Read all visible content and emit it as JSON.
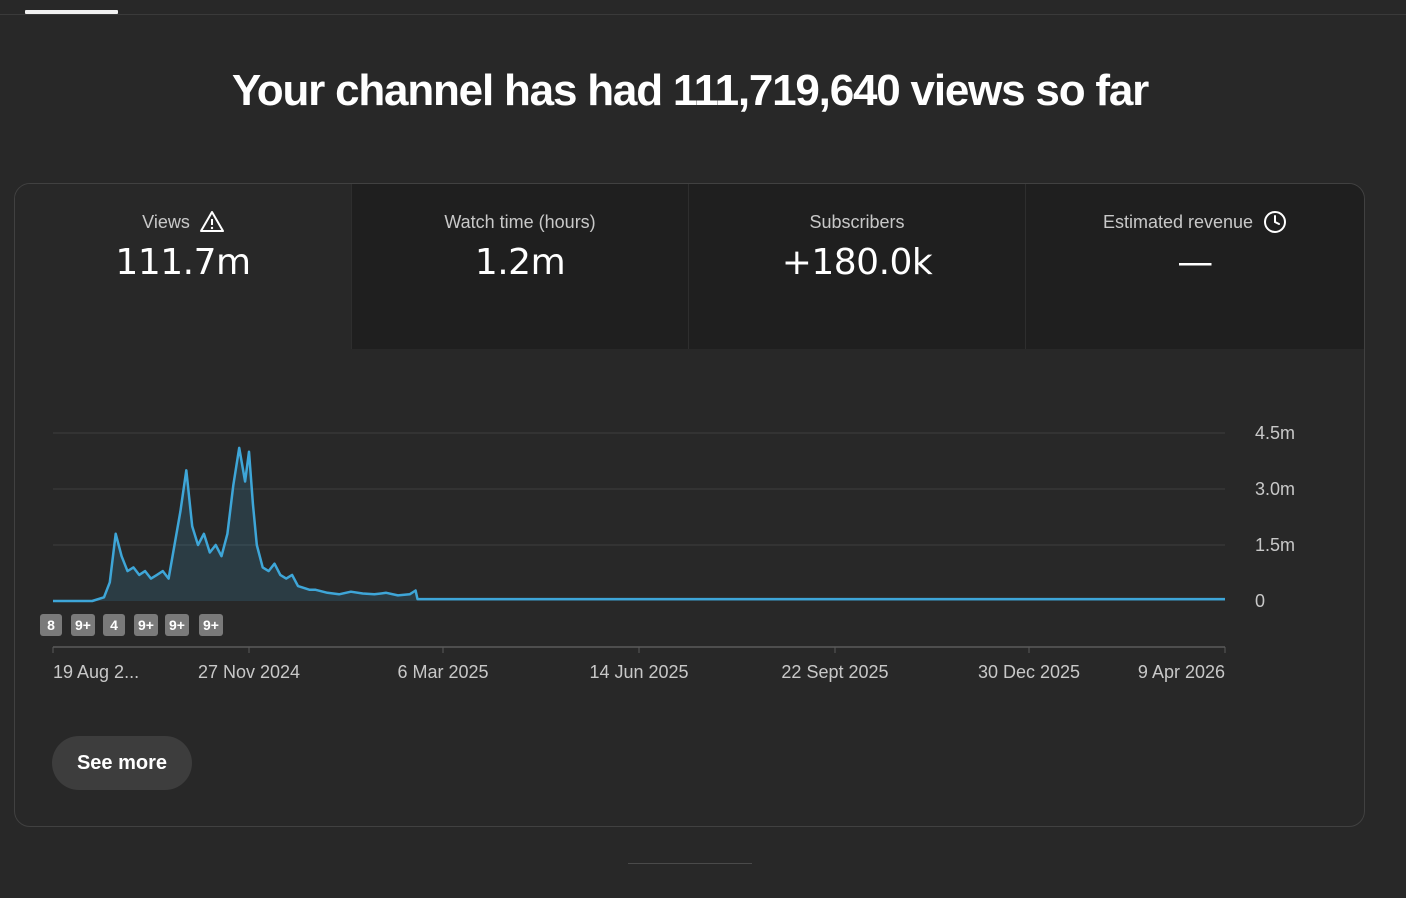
{
  "headline": "Your channel has had 111,719,640 views so far",
  "tabs": [
    {
      "label": "Views",
      "value": "111.7m",
      "icon": "warning-triangle-icon",
      "active": true
    },
    {
      "label": "Watch time (hours)",
      "value": "1.2m",
      "icon": "",
      "active": false
    },
    {
      "label": "Subscribers",
      "value": "+180.0k",
      "icon": "",
      "active": false
    },
    {
      "label": "Estimated revenue",
      "value": "—",
      "icon": "clock-icon",
      "active": false
    }
  ],
  "chart_data": {
    "type": "area",
    "series": [
      {
        "name": "",
        "x": [
          "2024-08-19",
          "2024-09-08",
          "2024-09-14",
          "2024-09-17",
          "2024-09-20",
          "2024-09-23",
          "2024-09-26",
          "2024-09-29",
          "2024-10-02",
          "2024-10-05",
          "2024-10-08",
          "2024-10-11",
          "2024-10-14",
          "2024-10-17",
          "2024-10-20",
          "2024-10-23",
          "2024-10-26",
          "2024-10-29",
          "2024-11-01",
          "2024-11-04",
          "2024-11-07",
          "2024-11-10",
          "2024-11-13",
          "2024-11-16",
          "2024-11-19",
          "2024-11-22",
          "2024-11-25",
          "2024-11-27",
          "2024-11-29",
          "2024-12-01",
          "2024-12-04",
          "2024-12-07",
          "2024-12-10",
          "2024-12-13",
          "2024-12-16",
          "2024-12-19",
          "2024-12-22",
          "2024-12-25",
          "2024-12-28",
          "2024-12-31",
          "2025-01-06",
          "2025-01-12",
          "2025-01-18",
          "2025-01-24",
          "2025-01-30",
          "2025-02-05",
          "2025-02-11",
          "2025-02-17",
          "2025-02-20",
          "2025-02-21",
          "2025-03-06",
          "2025-06-14",
          "2025-09-22",
          "2025-12-30",
          "2026-04-09"
        ],
        "y": [
          0,
          0,
          0.1,
          0.5,
          1.8,
          1.2,
          0.8,
          0.9,
          0.7,
          0.8,
          0.6,
          0.7,
          0.8,
          0.6,
          1.5,
          2.4,
          3.5,
          2.0,
          1.5,
          1.8,
          1.3,
          1.5,
          1.2,
          1.8,
          3.1,
          4.1,
          3.2,
          4.0,
          2.6,
          1.5,
          0.9,
          0.8,
          1.0,
          0.7,
          0.6,
          0.7,
          0.4,
          0.35,
          0.3,
          0.3,
          0.22,
          0.18,
          0.25,
          0.2,
          0.18,
          0.22,
          0.15,
          0.18,
          0.28,
          0.05,
          0.05,
          0.05,
          0.05,
          0.05,
          0.05
        ]
      }
    ],
    "y_ticks": [
      "0",
      "1.5m",
      "3.0m",
      "4.5m"
    ],
    "ylim": [
      0,
      4.5
    ],
    "x_ticks": [
      "19 Aug 2...",
      "27 Nov 2024",
      "6 Mar 2025",
      "14 Jun 2025",
      "22 Sept 2025",
      "30 Dec 2025",
      "9 Apr 2026"
    ],
    "grid": true,
    "line_color": "#3ea6d8",
    "annotation_badges": [
      "8",
      "9+",
      "4",
      "9+",
      "9+",
      "9+"
    ]
  },
  "see_more_label": "See more",
  "colors": {
    "background": "#282828",
    "accent_line": "#3ea6d8"
  }
}
